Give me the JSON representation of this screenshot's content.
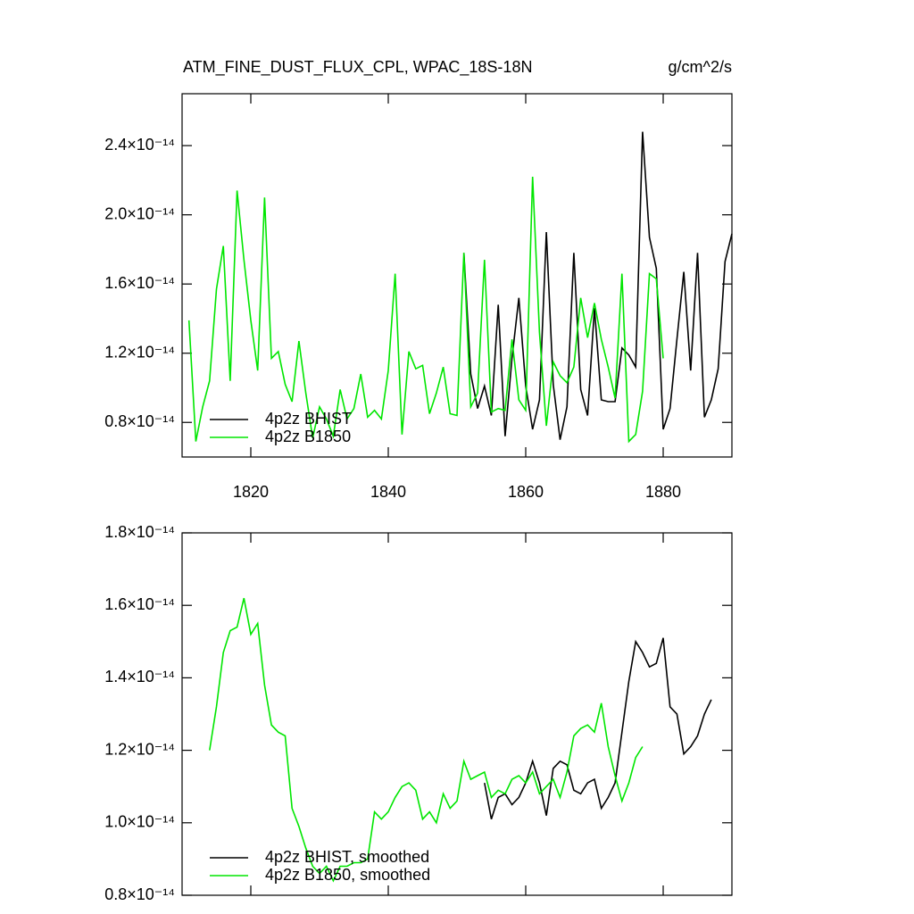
{
  "chart_data": [
    {
      "type": "line",
      "title": "ATM_FINE_DUST_FLUX_CPL, WPAC_18S-18N",
      "units": "g/cm^2/s",
      "xlim": [
        1810,
        1890
      ],
      "xticks": [
        1820,
        1840,
        1860,
        1880
      ],
      "ylim": [
        6e-15,
        2.7e-14
      ],
      "yticks": [
        {
          "value": 8e-15,
          "label": "0.8×10⁻¹⁴"
        },
        {
          "value": 1.2e-14,
          "label": "1.2×10⁻¹⁴"
        },
        {
          "value": 1.6e-14,
          "label": "1.6×10⁻¹⁴"
        },
        {
          "value": 2e-14,
          "label": "2.0×10⁻¹⁴"
        },
        {
          "value": 2.4e-14,
          "label": "2.4×10⁻¹⁴"
        }
      ],
      "legend": "lower left",
      "series": [
        {
          "name": "4p2z BHIST",
          "color": "#000000",
          "x": [
            1851,
            1852,
            1853,
            1854,
            1855,
            1856,
            1857,
            1858,
            1859,
            1860,
            1861,
            1862,
            1863,
            1864,
            1865,
            1866,
            1867,
            1868,
            1869,
            1870,
            1871,
            1872,
            1873,
            1874,
            1875,
            1876,
            1877,
            1878,
            1879,
            1880,
            1881,
            1882,
            1883,
            1884,
            1885,
            1886,
            1887,
            1888,
            1889,
            1890
          ],
          "values": [
            1.78e-14,
            1.08e-14,
            8.8e-15,
            1.01e-14,
            8.4e-15,
            1.48e-14,
            7.2e-15,
            1.17e-14,
            1.52e-14,
            1.01e-14,
            7.6e-15,
            9.3e-15,
            1.9e-14,
            1.02e-14,
            7e-15,
            8.9e-15,
            1.78e-14,
            9.9e-15,
            8.4e-15,
            1.46e-14,
            9.3e-15,
            9.2e-15,
            9.2e-15,
            1.23e-14,
            1.19e-14,
            1.12e-14,
            2.48e-14,
            1.87e-14,
            1.69e-14,
            7.6e-15,
            8.8e-15,
            1.28e-14,
            1.67e-14,
            1.1e-14,
            1.78e-14,
            8.3e-15,
            9.3e-15,
            1.11e-14,
            1.73e-14,
            1.89e-14
          ]
        },
        {
          "name": "4p2z B1850",
          "color": "#00e600",
          "x": [
            1811,
            1812,
            1813,
            1814,
            1815,
            1816,
            1817,
            1818,
            1819,
            1820,
            1821,
            1822,
            1823,
            1824,
            1825,
            1826,
            1827,
            1828,
            1829,
            1830,
            1831,
            1832,
            1833,
            1834,
            1835,
            1836,
            1837,
            1838,
            1839,
            1840,
            1841,
            1842,
            1843,
            1844,
            1845,
            1846,
            1847,
            1848,
            1849,
            1850,
            1851,
            1852,
            1853,
            1854,
            1855,
            1856,
            1857,
            1858,
            1859,
            1860,
            1861,
            1862,
            1863,
            1864,
            1865,
            1866,
            1867,
            1868,
            1869,
            1870,
            1871,
            1872,
            1873,
            1874,
            1875,
            1876,
            1877,
            1878,
            1879,
            1880
          ],
          "values": [
            1.39e-14,
            6.9e-15,
            8.9e-15,
            1.04e-14,
            1.57e-14,
            1.82e-14,
            1.04e-14,
            2.14e-14,
            1.74e-14,
            1.39e-14,
            1.1e-14,
            2.1e-14,
            1.17e-14,
            1.21e-14,
            1.02e-14,
            9.2e-15,
            1.27e-14,
            9.7e-15,
            7.1e-15,
            8.9e-15,
            8.2e-15,
            7.2e-15,
            9.9e-15,
            8.2e-15,
            8.8e-15,
            1.08e-14,
            8.3e-15,
            8.7e-15,
            8.2e-15,
            1.1e-14,
            1.66e-14,
            7.3e-15,
            1.21e-14,
            1.11e-14,
            1.13e-14,
            8.5e-15,
            9.7e-15,
            1.12e-14,
            8.5e-15,
            8.4e-15,
            1.78e-14,
            8.9e-15,
            9.7e-15,
            1.74e-14,
            8.6e-15,
            8.8e-15,
            8.7e-15,
            1.28e-14,
            9.3e-15,
            8.7e-15,
            2.22e-14,
            1.32e-14,
            7.8e-15,
            1.15e-14,
            1.07e-14,
            1.03e-14,
            1.12e-14,
            1.52e-14,
            1.29e-14,
            1.49e-14,
            1.28e-14,
            1.12e-14,
            9.4e-15,
            1.66e-14,
            6.9e-15,
            7.3e-15,
            9.8e-15,
            1.66e-14,
            1.63e-14,
            1.17e-14
          ]
        }
      ]
    },
    {
      "type": "line",
      "xlim": [
        1810,
        1890
      ],
      "xticks": [
        1820,
        1840,
        1860,
        1880
      ],
      "xtick_labels": false,
      "ylim": [
        8e-15,
        1.8e-14
      ],
      "yticks": [
        {
          "value": 8e-15,
          "label": "0.8×10⁻¹⁴"
        },
        {
          "value": 1e-14,
          "label": "1.0×10⁻¹⁴"
        },
        {
          "value": 1.2e-14,
          "label": "1.2×10⁻¹⁴"
        },
        {
          "value": 1.4e-14,
          "label": "1.4×10⁻¹⁴"
        },
        {
          "value": 1.6e-14,
          "label": "1.6×10⁻¹⁴"
        },
        {
          "value": 1.8e-14,
          "label": "1.8×10⁻¹⁴"
        }
      ],
      "legend": "lower left",
      "series": [
        {
          "name": "4p2z BHIST, smoothed",
          "color": "#000000",
          "x": [
            1854,
            1855,
            1856,
            1857,
            1858,
            1859,
            1860,
            1861,
            1862,
            1863,
            1864,
            1865,
            1866,
            1867,
            1868,
            1869,
            1870,
            1871,
            1872,
            1873,
            1874,
            1875,
            1876,
            1877,
            1878,
            1879,
            1880,
            1881,
            1882,
            1883,
            1884,
            1885,
            1886,
            1887
          ],
          "values": [
            1.11e-14,
            1.01e-14,
            1.07e-14,
            1.08e-14,
            1.05e-14,
            1.07e-14,
            1.11e-14,
            1.17e-14,
            1.11e-14,
            1.02e-14,
            1.15e-14,
            1.17e-14,
            1.16e-14,
            1.09e-14,
            1.08e-14,
            1.11e-14,
            1.12e-14,
            1.04e-14,
            1.07e-14,
            1.11e-14,
            1.25e-14,
            1.39e-14,
            1.5e-14,
            1.47e-14,
            1.43e-14,
            1.44e-14,
            1.51e-14,
            1.32e-14,
            1.3e-14,
            1.19e-14,
            1.21e-14,
            1.24e-14,
            1.3e-14,
            1.34e-14
          ]
        },
        {
          "name": "4p2z B1850, smoothed",
          "color": "#00e600",
          "x": [
            1814,
            1815,
            1816,
            1817,
            1818,
            1819,
            1820,
            1821,
            1822,
            1823,
            1824,
            1825,
            1826,
            1827,
            1828,
            1829,
            1830,
            1831,
            1832,
            1833,
            1834,
            1835,
            1836,
            1837,
            1838,
            1839,
            1840,
            1841,
            1842,
            1843,
            1844,
            1845,
            1846,
            1847,
            1848,
            1849,
            1850,
            1851,
            1852,
            1853,
            1854,
            1855,
            1856,
            1857,
            1858,
            1859,
            1860,
            1861,
            1862,
            1863,
            1864,
            1865,
            1866,
            1867,
            1868,
            1869,
            1870,
            1871,
            1872,
            1873,
            1874,
            1875,
            1876,
            1877
          ],
          "values": [
            1.2e-14,
            1.32e-14,
            1.47e-14,
            1.53e-14,
            1.54e-14,
            1.62e-14,
            1.52e-14,
            1.55e-14,
            1.38e-14,
            1.27e-14,
            1.25e-14,
            1.24e-14,
            1.04e-14,
            9.9e-15,
            9.3e-15,
            8.8e-15,
            8.6e-15,
            8.8e-15,
            8.4e-15,
            8.8e-15,
            8.8e-15,
            8.9e-15,
            8.9e-15,
            9e-15,
            1.03e-14,
            1.01e-14,
            1.03e-14,
            1.07e-14,
            1.1e-14,
            1.11e-14,
            1.09e-14,
            1.01e-14,
            1.03e-14,
            1e-14,
            1.08e-14,
            1.04e-14,
            1.06e-14,
            1.17e-14,
            1.12e-14,
            1.13e-14,
            1.14e-14,
            1.07e-14,
            1.09e-14,
            1.08e-14,
            1.12e-14,
            1.13e-14,
            1.11e-14,
            1.14e-14,
            1.08e-14,
            1.1e-14,
            1.12e-14,
            1.07e-14,
            1.14e-14,
            1.24e-14,
            1.26e-14,
            1.27e-14,
            1.25e-14,
            1.33e-14,
            1.21e-14,
            1.13e-14,
            1.06e-14,
            1.11e-14,
            1.18e-14,
            1.21e-14
          ]
        }
      ]
    }
  ]
}
